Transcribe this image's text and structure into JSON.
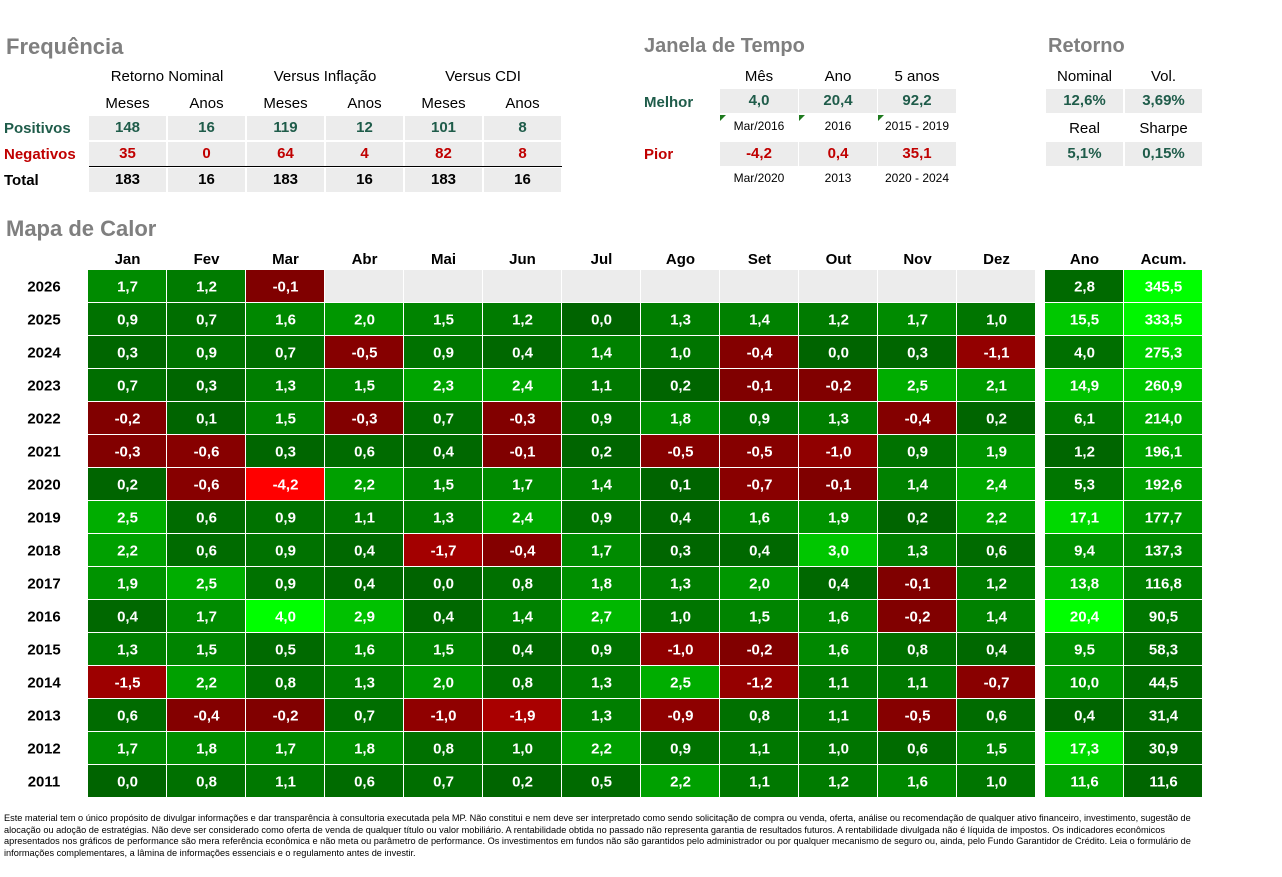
{
  "frequencia": {
    "title": "Frequência",
    "groups": [
      "Retorno Nominal",
      "Versus Inflação",
      "Versus CDI"
    ],
    "subheaders": [
      "Meses",
      "Anos",
      "Meses",
      "Anos",
      "Meses",
      "Anos"
    ],
    "rows": [
      {
        "label": "Positivos",
        "values": [
          "148",
          "16",
          "119",
          "12",
          "101",
          "8"
        ]
      },
      {
        "label": "Negativos",
        "values": [
          "35",
          "0",
          "64",
          "4",
          "82",
          "8"
        ]
      },
      {
        "label": "Total",
        "values": [
          "183",
          "16",
          "183",
          "16",
          "183",
          "16"
        ]
      }
    ]
  },
  "janela": {
    "title": "Janela de Tempo",
    "columns": [
      "Mês",
      "Ano",
      "5 anos"
    ],
    "melhor": {
      "label": "Melhor",
      "values": [
        "4,0",
        "20,4",
        "92,2"
      ],
      "periods": [
        "Mar/2016",
        "2016",
        "2015 - 2019"
      ]
    },
    "pior": {
      "label": "Pior",
      "values": [
        "-4,2",
        "0,4",
        "35,1"
      ],
      "periods": [
        "Mar/2020",
        "2013",
        "2020 - 2024"
      ]
    }
  },
  "retorno": {
    "title": "Retorno",
    "labels1": [
      "Nominal",
      "Vol."
    ],
    "values1": [
      "12,6%",
      "3,69%"
    ],
    "labels2": [
      "Real",
      "Sharpe"
    ],
    "values2": [
      "5,1%",
      "0,15%"
    ]
  },
  "chart_data": {
    "type": "heatmap",
    "title": "Mapa de Calor",
    "months": [
      "Jan",
      "Fev",
      "Mar",
      "Abr",
      "Mai",
      "Jun",
      "Jul",
      "Ago",
      "Set",
      "Out",
      "Nov",
      "Dez"
    ],
    "summary_columns": [
      "Ano",
      "Acum."
    ],
    "years": [
      "2026",
      "2025",
      "2024",
      "2023",
      "2022",
      "2021",
      "2020",
      "2019",
      "2018",
      "2017",
      "2016",
      "2015",
      "2014",
      "2013",
      "2012",
      "2011"
    ],
    "values": [
      [
        1.7,
        1.2,
        -0.1,
        null,
        null,
        null,
        null,
        null,
        null,
        null,
        null,
        null
      ],
      [
        0.9,
        0.7,
        1.6,
        2.0,
        1.5,
        1.2,
        0.0,
        1.3,
        1.4,
        1.2,
        1.7,
        1.0
      ],
      [
        0.3,
        0.9,
        0.7,
        -0.5,
        0.9,
        0.4,
        1.4,
        1.0,
        -0.4,
        0.0,
        0.3,
        -1.1
      ],
      [
        0.7,
        0.3,
        1.3,
        1.5,
        2.3,
        2.4,
        1.1,
        0.2,
        -0.1,
        -0.2,
        2.5,
        2.1
      ],
      [
        -0.2,
        0.1,
        1.5,
        -0.3,
        0.7,
        -0.3,
        0.9,
        1.8,
        0.9,
        1.3,
        -0.4,
        0.2
      ],
      [
        -0.3,
        -0.6,
        0.3,
        0.6,
        0.4,
        -0.1,
        0.2,
        -0.5,
        -0.5,
        -1.0,
        0.9,
        1.9
      ],
      [
        0.2,
        -0.6,
        -4.2,
        2.2,
        1.5,
        1.7,
        1.4,
        0.1,
        -0.7,
        -0.1,
        1.4,
        2.4
      ],
      [
        2.5,
        0.6,
        0.9,
        1.1,
        1.3,
        2.4,
        0.9,
        0.4,
        1.6,
        1.9,
        0.2,
        2.2
      ],
      [
        2.2,
        0.6,
        0.9,
        0.4,
        -1.7,
        -0.4,
        1.7,
        0.3,
        0.4,
        3.0,
        1.3,
        0.6
      ],
      [
        1.9,
        2.5,
        0.9,
        0.4,
        0.0,
        0.8,
        1.8,
        1.3,
        2.0,
        0.4,
        -0.1,
        1.2
      ],
      [
        0.4,
        1.7,
        4.0,
        2.9,
        0.4,
        1.4,
        2.7,
        1.0,
        1.5,
        1.6,
        -0.2,
        1.4
      ],
      [
        1.3,
        1.5,
        0.5,
        1.6,
        1.5,
        0.4,
        0.9,
        -1.0,
        -0.2,
        1.6,
        0.8,
        0.4
      ],
      [
        -1.5,
        2.2,
        0.8,
        1.3,
        2.0,
        0.8,
        1.3,
        2.5,
        -1.2,
        1.1,
        1.1,
        -0.7
      ],
      [
        0.6,
        -0.4,
        -0.2,
        0.7,
        -1.0,
        -1.9,
        1.3,
        -0.9,
        0.8,
        1.1,
        -0.5,
        0.6
      ],
      [
        1.7,
        1.8,
        1.7,
        1.8,
        0.8,
        1.0,
        2.2,
        0.9,
        1.1,
        1.0,
        0.6,
        1.5
      ],
      [
        0.0,
        0.8,
        1.1,
        0.6,
        0.7,
        0.2,
        0.5,
        2.2,
        1.1,
        1.2,
        1.6,
        1.0
      ]
    ],
    "ano": [
      2.8,
      15.5,
      4.0,
      14.9,
      6.1,
      1.2,
      5.3,
      17.1,
      9.4,
      13.8,
      20.4,
      9.5,
      10.0,
      0.4,
      17.3,
      11.6
    ],
    "acum": [
      345.5,
      333.5,
      275.3,
      260.9,
      214.0,
      196.1,
      192.6,
      177.7,
      137.3,
      116.8,
      90.5,
      58.3,
      44.5,
      31.4,
      30.9,
      11.6
    ],
    "colors": {
      "negative_dark": "#7f0000",
      "negative_bright": "#ff0000",
      "positive_dark": "#006400",
      "positive_bright": "#00ff00",
      "empty": "#ececec"
    }
  },
  "disclaimer": "Este material tem o único propósito de divulgar informações e dar transparência à consultoria executada pela MP. Não constitui e nem deve ser interpretado como sendo solicitação de compra ou venda, oferta, análise ou recomendação de qualquer ativo financeiro, investimento, sugestão de alocação ou adoção de estratégias. Não deve ser considerado como oferta de venda de qualquer título ou valor mobiliário. A rentabilidade obtida no passado não representa garantia de resultados futuros. A rentabilidade divulgada não é líquida de impostos. Os indicadores econômicos apresentados nos gráficos de performance são mera referência econômica e não meta ou parâmetro de performance. Os investimentos em fundos não são garantidos pelo administrador ou por qualquer mecanismo de seguro ou, ainda, pelo Fundo Garantidor de Crédito. Leia o formulário de informações complementares, a lâmina de informações essenciais e o regulamento antes de investir."
}
